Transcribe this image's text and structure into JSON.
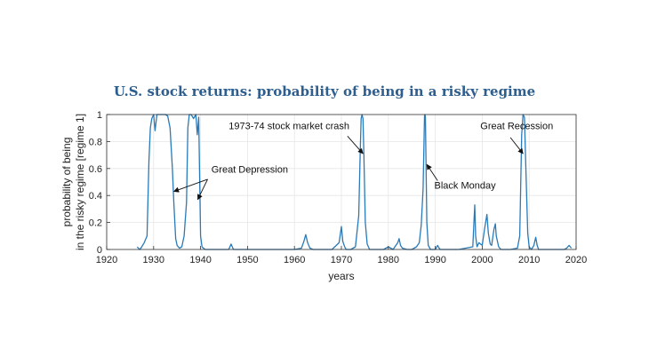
{
  "chart_data": {
    "type": "line",
    "title": "U.S. stock returns: probability of being in a risky regime",
    "xlabel": "years",
    "ylabel_lines": [
      "probability of being",
      "in the risky regime [regime 1]"
    ],
    "xlim": [
      1920,
      2020
    ],
    "ylim": [
      0,
      1
    ],
    "xticks": [
      "1920",
      "1930",
      "1940",
      "1950",
      "1960",
      "1970",
      "1980",
      "1990",
      "2000",
      "2010",
      "2020"
    ],
    "yticks": [
      "0",
      "0.2",
      "0.4",
      "0.6",
      "0.8",
      "1"
    ],
    "grid": true,
    "line_color": "#2a7ab8",
    "series": [
      {
        "x": [
          1926.5,
          1927.0,
          1927.3,
          1928.0,
          1928.6,
          1929.0,
          1929.3,
          1929.6,
          1930.0,
          1930.3,
          1930.7,
          1931.0,
          1931.5,
          1932.0,
          1932.5,
          1933.0,
          1933.5,
          1934.0,
          1934.3,
          1934.7,
          1935.0,
          1935.5,
          1936.0,
          1936.5,
          1937.0,
          1937.3,
          1937.6,
          1938.0,
          1938.5,
          1939.0,
          1939.3,
          1939.6,
          1940.0,
          1940.3,
          1940.6,
          1941.0,
          1942.0,
          1944.0,
          1946.0,
          1946.5,
          1947.0,
          1948.0,
          1950.0,
          1955.0,
          1960.0,
          1961.5,
          1962.0,
          1962.4,
          1962.8,
          1963.3,
          1964.0,
          1966.0,
          1968.0,
          1969.5,
          1970.0,
          1970.3,
          1970.7,
          1971.0,
          1972.0,
          1973.0,
          1973.7,
          1974.0,
          1974.2,
          1974.4,
          1974.6,
          1974.8,
          1975.1,
          1975.5,
          1976.0,
          1977.0,
          1978.0,
          1979.0,
          1980.0,
          1981.0,
          1982.0,
          1982.3,
          1982.6,
          1983.0,
          1984.0,
          1985.0,
          1986.0,
          1986.6,
          1987.0,
          1987.4,
          1987.7,
          1987.8,
          1987.9,
          1988.2,
          1988.5,
          1989.0,
          1990.0,
          1990.5,
          1991.0,
          1992.0,
          1995.0,
          1998.0,
          1998.4,
          1998.6,
          1998.9,
          1999.3,
          2000.0,
          2000.5,
          2001.0,
          2001.3,
          2001.7,
          2002.0,
          2002.5,
          2002.8,
          2003.0,
          2003.5,
          2004.0,
          2006.0,
          2007.5,
          2008.0,
          2008.4,
          2008.7,
          2009.0,
          2009.3,
          2009.7,
          2010.0,
          2010.5,
          2011.0,
          2011.4,
          2011.7,
          2012.0,
          2014.0,
          2016.0,
          2017.5,
          2018.0,
          2018.5,
          2019.0
        ],
        "y": [
          0.02,
          0.0,
          0.01,
          0.05,
          0.1,
          0.65,
          0.9,
          0.97,
          1.0,
          0.88,
          1.0,
          1.0,
          1.0,
          1.0,
          1.0,
          0.99,
          0.9,
          0.6,
          0.35,
          0.08,
          0.03,
          0.01,
          0.02,
          0.1,
          0.35,
          0.9,
          1.0,
          1.0,
          0.97,
          1.0,
          0.85,
          0.98,
          0.1,
          0.02,
          0.01,
          0.0,
          0.0,
          0.0,
          0.0,
          0.04,
          0.0,
          0.0,
          0.0,
          0.0,
          0.0,
          0.01,
          0.06,
          0.11,
          0.05,
          0.01,
          0.0,
          0.0,
          0.0,
          0.05,
          0.17,
          0.06,
          0.02,
          0.0,
          0.0,
          0.02,
          0.25,
          0.7,
          0.97,
          1.0,
          0.97,
          0.7,
          0.2,
          0.04,
          0.0,
          0.0,
          0.0,
          0.0,
          0.02,
          0.0,
          0.05,
          0.08,
          0.03,
          0.01,
          0.0,
          0.0,
          0.02,
          0.05,
          0.18,
          0.45,
          0.99,
          1.0,
          0.98,
          0.2,
          0.03,
          0.0,
          0.0,
          0.03,
          0.0,
          0.0,
          0.0,
          0.02,
          0.33,
          0.1,
          0.02,
          0.05,
          0.03,
          0.15,
          0.26,
          0.12,
          0.04,
          0.03,
          0.15,
          0.19,
          0.1,
          0.02,
          0.0,
          0.0,
          0.01,
          0.1,
          0.85,
          1.0,
          0.98,
          0.6,
          0.12,
          0.02,
          0.0,
          0.03,
          0.09,
          0.03,
          0.0,
          0.0,
          0.0,
          0.0,
          0.01,
          0.03,
          0.01
        ]
      }
    ],
    "annotations": [
      {
        "text": "Great Depression",
        "x": 1942.3,
        "y": 0.57,
        "arrows": [
          {
            "from": [
              1941.5,
              0.52
            ],
            "to": [
              1934.3,
              0.43
            ]
          },
          {
            "from": [
              1941.5,
              0.52
            ],
            "to": [
              1939.4,
              0.37
            ]
          }
        ]
      },
      {
        "text": "1973-74 stock market crash",
        "x": 1946.0,
        "y": 0.89,
        "arrows": [
          {
            "from": [
              1971.3,
              0.84
            ],
            "to": [
              1974.6,
              0.71
            ]
          }
        ]
      },
      {
        "text": "Black Monday",
        "x": 1989.8,
        "y": 0.45,
        "arrows": [
          {
            "from": [
              1990.5,
              0.51
            ],
            "to": [
              1988.2,
              0.63
            ]
          }
        ]
      },
      {
        "text": "Great Recession",
        "x": 1999.6,
        "y": 0.89,
        "arrows": [
          {
            "from": [
              2006.0,
              0.83
            ],
            "to": [
              2008.7,
              0.71
            ]
          }
        ]
      }
    ]
  }
}
